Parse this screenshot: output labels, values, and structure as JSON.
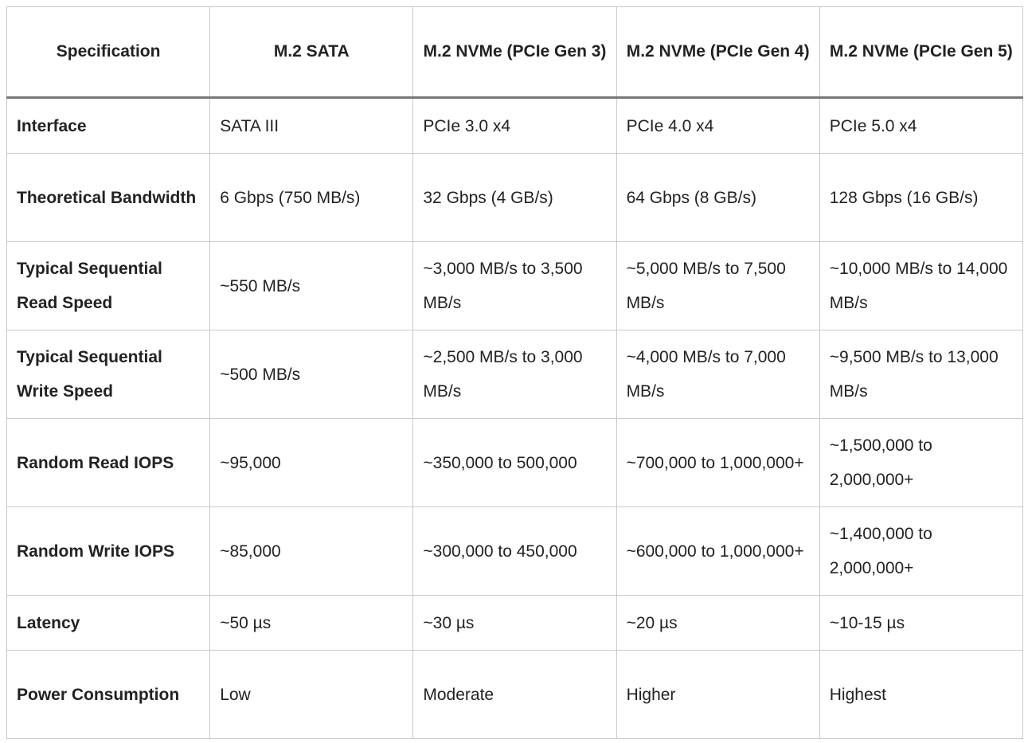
{
  "table": {
    "header": [
      "Specification",
      "M.2 SATA",
      "M.2 NVMe (PCIe Gen 3)",
      "M.2 NVMe (PCIe Gen 4)",
      "M.2 NVMe (PCIe Gen 5)"
    ],
    "rows": [
      [
        "Interface",
        "SATA III",
        "PCIe 3.0 x4",
        "PCIe 4.0 x4",
        "PCIe 5.0 x4"
      ],
      [
        "Theoretical Bandwidth",
        "6 Gbps (750 MB/s)",
        "32 Gbps (4 GB/s)",
        "64 Gbps (8 GB/s)",
        "128 Gbps (16 GB/s)"
      ],
      [
        "Typical Sequential Read Speed",
        "~550 MB/s",
        "~3,000 MB/s to 3,500 MB/s",
        "~5,000 MB/s to 7,500 MB/s",
        "~10,000 MB/s to 14,000 MB/s"
      ],
      [
        "Typical Sequential Write Speed",
        "~500 MB/s",
        "~2,500 MB/s to 3,000 MB/s",
        "~4,000 MB/s to 7,000 MB/s",
        "~9,500 MB/s to 13,000 MB/s"
      ],
      [
        "Random Read IOPS",
        "~95,000",
        "~350,000 to 500,000",
        "~700,000 to 1,000,000+",
        "~1,500,000 to 2,000,000+"
      ],
      [
        "Random Write IOPS",
        "~85,000",
        "~300,000 to 450,000",
        "~600,000 to 1,000,000+",
        "~1,400,000 to 2,000,000+"
      ],
      [
        "Latency",
        "~50 µs",
        "~30 µs",
        "~20 µs",
        "~10-15 µs"
      ],
      [
        "Power Consumption",
        "Low",
        "Moderate",
        "Higher",
        "Highest"
      ]
    ]
  }
}
